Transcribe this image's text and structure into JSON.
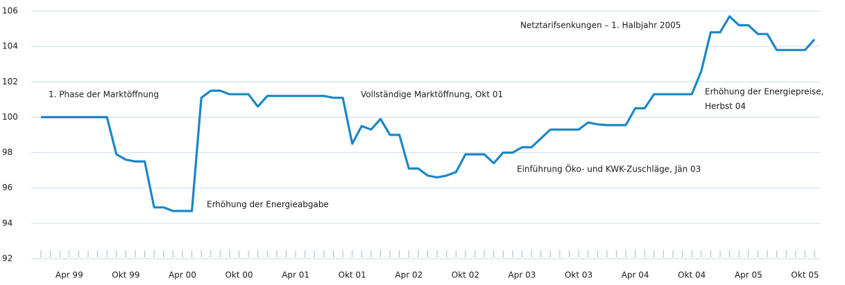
{
  "chart_data": {
    "type": "line",
    "categories": [
      null,
      null,
      null,
      "Apr 99",
      null,
      null,
      null,
      null,
      null,
      "Okt 99",
      null,
      null,
      null,
      null,
      null,
      "Apr 00",
      null,
      null,
      null,
      null,
      null,
      "Okt 00",
      null,
      null,
      null,
      null,
      null,
      "Apr 01",
      null,
      null,
      null,
      null,
      null,
      "Okt 01",
      null,
      null,
      null,
      null,
      null,
      "Apr 02",
      null,
      null,
      null,
      null,
      null,
      "Okt 02",
      null,
      null,
      null,
      null,
      null,
      "Apr 03",
      null,
      null,
      null,
      null,
      null,
      "Okt 03",
      null,
      null,
      null,
      null,
      null,
      "Apr 04",
      null,
      null,
      null,
      null,
      null,
      "Okt 04",
      null,
      null,
      null,
      null,
      null,
      "Apr 05",
      null,
      null,
      null,
      null,
      null,
      "Okt 05",
      null
    ],
    "series": [
      {
        "color": "#1b86c6",
        "values": [
          100,
          100,
          100,
          100,
          100,
          100,
          100,
          100,
          97.9,
          97.6,
          97.5,
          97.5,
          94.9,
          94.9,
          94.7,
          94.7,
          94.7,
          101.1,
          101.5,
          101.5,
          101.3,
          101.3,
          101.3,
          100.6,
          101.2,
          101.2,
          101.2,
          101.2,
          101.2,
          101.2,
          101.2,
          101.1,
          101.1,
          98.5,
          99.5,
          99.3,
          99.9,
          99.0,
          99.0,
          97.1,
          97.1,
          96.7,
          96.6,
          96.7,
          96.9,
          97.9,
          97.9,
          97.9,
          97.4,
          98.0,
          98.0,
          98.3,
          98.3,
          98.8,
          99.3,
          99.3,
          99.3,
          99.3,
          99.7,
          99.6,
          99.55,
          99.55,
          99.55,
          100.5,
          100.5,
          101.3,
          101.3,
          101.3,
          101.3,
          101.3,
          102.6,
          104.8,
          104.8,
          105.7,
          105.2,
          105.2,
          104.7,
          104.7,
          103.8,
          103.8,
          103.8,
          103.8,
          104.4
        ]
      }
    ],
    "ylim": [
      92,
      106
    ],
    "yticks": [
      92,
      94,
      96,
      98,
      100,
      102,
      104,
      106
    ],
    "grid": true,
    "annotations": [
      "1. Phase der Marktöffnung",
      "Erhöhung der Energieabgabe",
      "Vollständige Marktöffnung, Okt 01",
      "Einführung Öko- und KWK-Zuschläge, Jän 03",
      "Netztarifsenkungen – 1. Halbjahr 2005",
      "Erhöhung der Energiepreise,",
      "Herbst 04"
    ]
  }
}
